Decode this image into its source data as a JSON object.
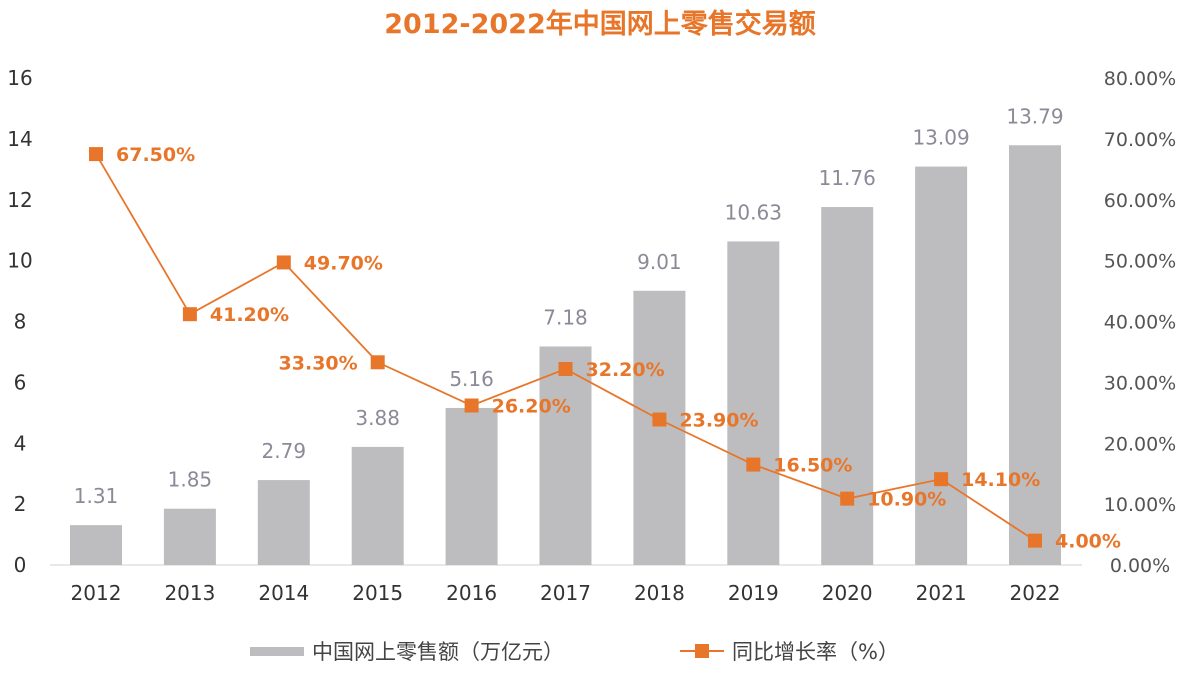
{
  "chart_data": {
    "type": "bar+line",
    "title": "2012-2022年中国网上零售交易额",
    "categories": [
      "2012",
      "2013",
      "2014",
      "2015",
      "2016",
      "2017",
      "2018",
      "2019",
      "2020",
      "2021",
      "2022"
    ],
    "series": [
      {
        "name": "中国网上零售额（万亿元）",
        "type": "bar",
        "axis": "left",
        "color": "#BDBDBF",
        "values": [
          1.31,
          1.85,
          2.79,
          3.88,
          5.16,
          7.18,
          9.01,
          10.63,
          11.76,
          13.09,
          13.79
        ],
        "labels": [
          "1.31",
          "1.85",
          "2.79",
          "3.88",
          "5.16",
          "7.18",
          "9.01",
          "10.63",
          "11.76",
          "13.09",
          "13.79"
        ]
      },
      {
        "name": "同比增长率（%）",
        "type": "line",
        "axis": "right",
        "color": "#E8762A",
        "values": [
          67.5,
          41.2,
          49.7,
          33.3,
          26.2,
          32.2,
          23.9,
          16.5,
          10.9,
          14.1,
          4.0
        ],
        "labels": [
          "67.50%",
          "41.20%",
          "49.70%",
          "33.30%",
          "26.20%",
          "32.20%",
          "23.90%",
          "16.50%",
          "10.90%",
          "14.10%",
          "4.00%"
        ]
      }
    ],
    "ylim_left": [
      0,
      16
    ],
    "yticks_left": [
      "0",
      "2",
      "4",
      "6",
      "8",
      "10",
      "12",
      "14",
      "16"
    ],
    "ylim_right": [
      0,
      80
    ],
    "yticks_right": [
      "0.00%",
      "10.00%",
      "20.00%",
      "30.00%",
      "40.00%",
      "50.00%",
      "60.00%",
      "70.00%",
      "80.00%"
    ],
    "grid": false,
    "legend_position": "bottom"
  }
}
